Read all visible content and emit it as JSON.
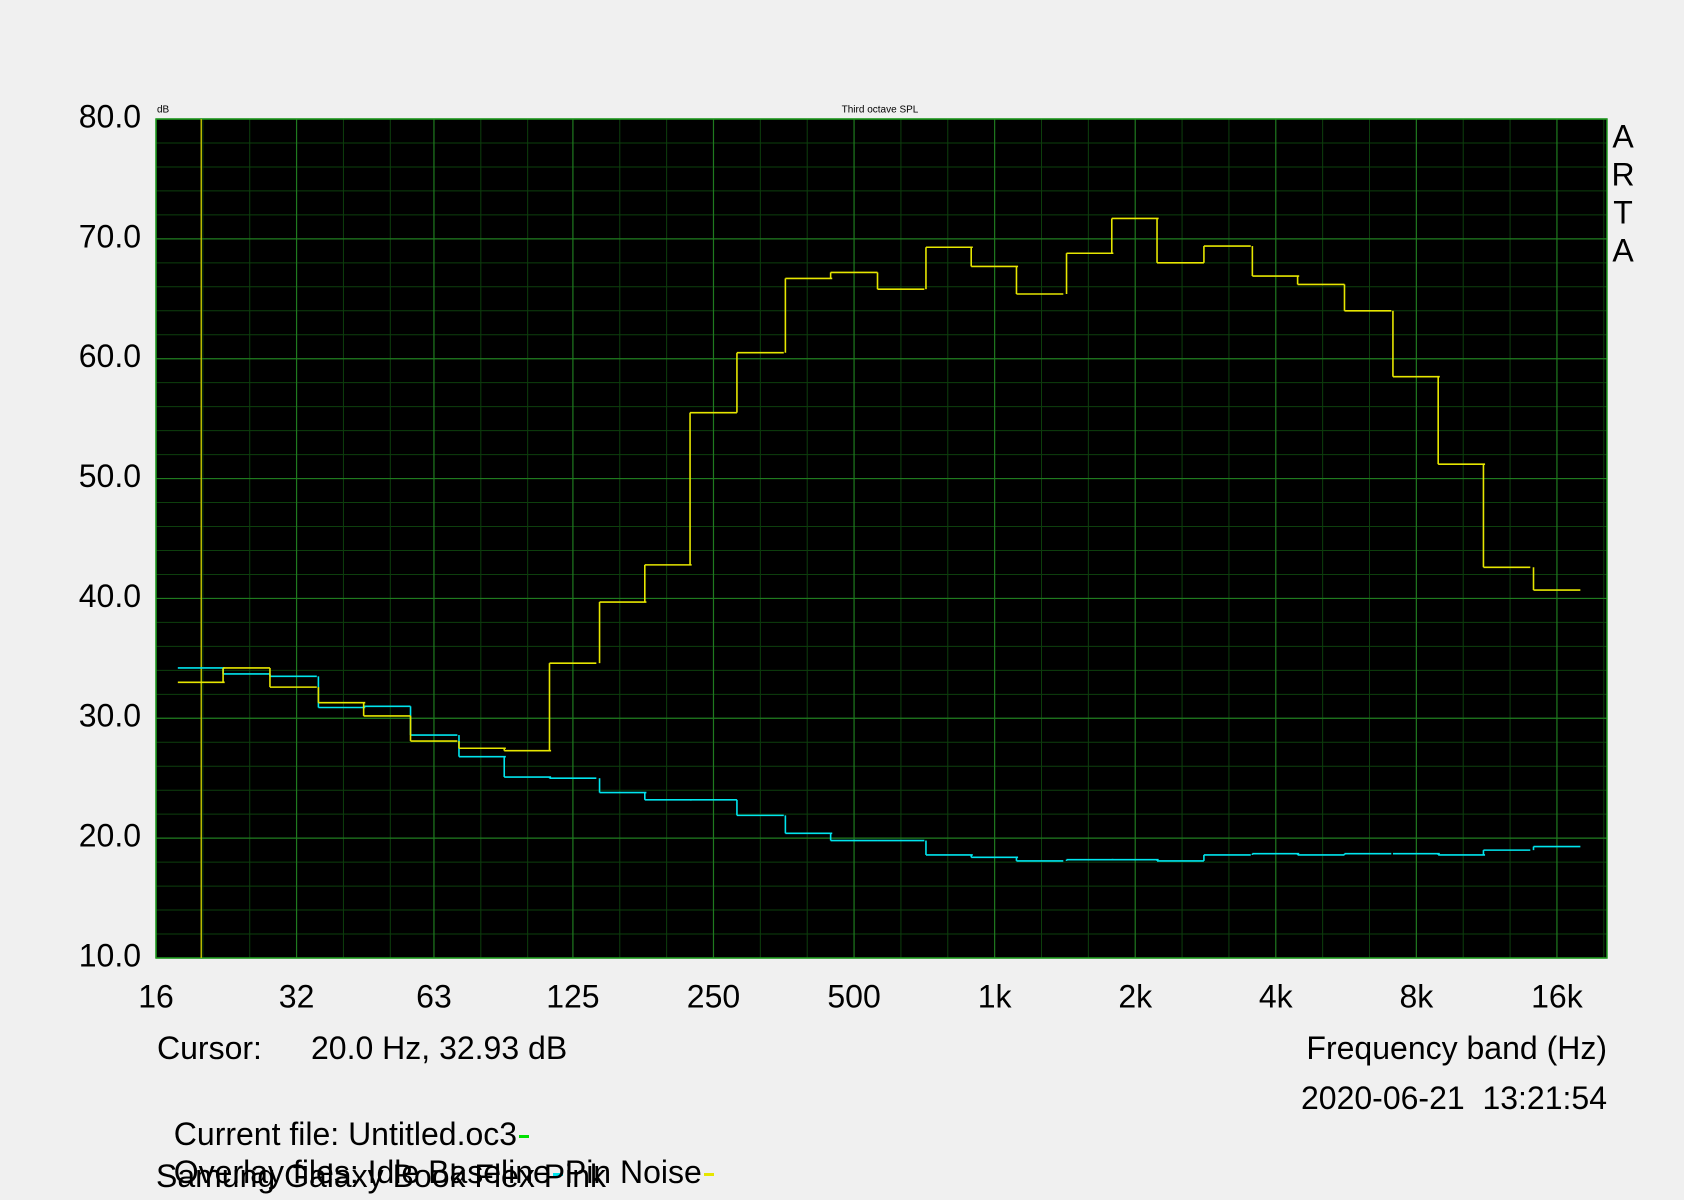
{
  "chart_data": {
    "type": "step",
    "title": "Third octave SPL",
    "y_unit": "dB",
    "xlabel": "Frequency band (Hz)",
    "log_x": true,
    "grid": true,
    "x": [
      20,
      25,
      31.5,
      40,
      50,
      63,
      80,
      100,
      125,
      160,
      200,
      250,
      315,
      400,
      500,
      630,
      800,
      1000,
      1250,
      1600,
      2000,
      2500,
      3150,
      4000,
      5000,
      6300,
      8000,
      10000,
      12500,
      16000
    ],
    "series": [
      {
        "name": "Idle Baseline",
        "color": "#00e5ee",
        "values": [
          34.2,
          33.7,
          33.5,
          30.9,
          31.0,
          28.6,
          26.8,
          25.1,
          25.0,
          23.8,
          23.2,
          23.2,
          21.9,
          20.4,
          19.8,
          19.8,
          18.6,
          18.4,
          18.1,
          18.2,
          18.2,
          18.1,
          18.6,
          18.7,
          18.6,
          18.7,
          18.7,
          18.6,
          19.0,
          19.3
        ]
      },
      {
        "name": "Pin Noise",
        "color": "#e6e600",
        "values": [
          33.0,
          34.2,
          32.6,
          31.3,
          30.2,
          28.1,
          27.5,
          27.3,
          34.6,
          39.7,
          42.8,
          55.5,
          60.5,
          66.7,
          67.2,
          65.8,
          69.3,
          67.7,
          65.4,
          68.8,
          71.7,
          68.0,
          69.4,
          66.9,
          66.2,
          64.0,
          58.5,
          51.2,
          42.6,
          40.7
        ]
      }
    ],
    "xlim": [
      16,
      20480
    ],
    "ylim": [
      10,
      80
    ],
    "xticks": [
      16,
      32,
      63,
      125,
      250,
      500,
      {
        "value": 1000,
        "label": "1k"
      },
      {
        "value": 2000,
        "label": "2k"
      },
      {
        "value": 4000,
        "label": "4k"
      },
      {
        "value": 8000,
        "label": "8k"
      },
      {
        "value": 16000,
        "label": "16k"
      }
    ],
    "yticks": [
      {
        "value": 10,
        "label": "10.0"
      },
      {
        "value": 20,
        "label": "20.0"
      },
      {
        "value": 30,
        "label": "30.0"
      },
      {
        "value": 40,
        "label": "40.0"
      },
      {
        "value": 50,
        "label": "50.0"
      },
      {
        "value": 60,
        "label": "60.0"
      },
      {
        "value": 70,
        "label": "70.0"
      },
      {
        "value": 80,
        "label": "80.0"
      }
    ],
    "cursor": {
      "label": "Cursor:",
      "text": "20.0 Hz, 32.93 dB",
      "x": 20,
      "color": "#b8b800"
    },
    "side_label": [
      "A",
      "R",
      "T",
      "A"
    ],
    "timestamp": "2020-06-21  13:21:54",
    "current_file": {
      "label": "Current file:",
      "name": "Untitled.oc3",
      "color": "#00e000"
    },
    "overlay_label": "Overlay files:",
    "note": "Samung Galaxy Book Flex Pink"
  }
}
